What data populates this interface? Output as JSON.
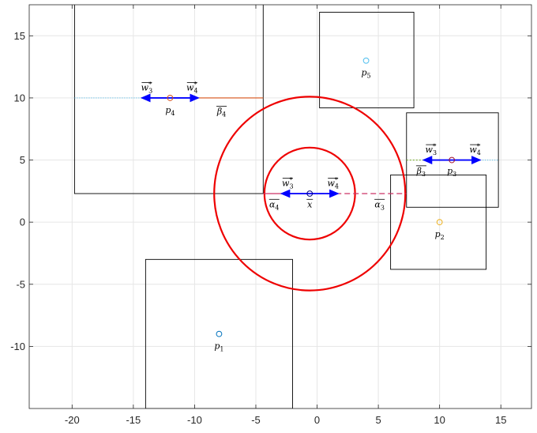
{
  "chart_data": {
    "type": "scatter",
    "title": "",
    "xlabel": "",
    "ylabel": "",
    "xlim": [
      -23.5,
      17.5
    ],
    "ylim": [
      -15,
      17.5
    ],
    "grid": true,
    "xticks": [
      -20,
      -15,
      -10,
      -5,
      0,
      5,
      10,
      15
    ],
    "yticks": [
      -10,
      -5,
      0,
      5,
      10,
      15
    ],
    "xtick_labels": [
      "-20",
      "-15",
      "-10",
      "-5",
      "0",
      "5",
      "10",
      "15"
    ],
    "ytick_labels": [
      "-10",
      "-5",
      "0",
      "5",
      "10",
      "15"
    ],
    "points": [
      {
        "label": "p",
        "sub": "1",
        "x": -8,
        "y": -9,
        "color": "#0072bd"
      },
      {
        "label": "p",
        "sub": "2",
        "x": 10,
        "y": 0,
        "color": "#edb120"
      },
      {
        "label": "p",
        "sub": "3",
        "x": 11,
        "y": 5,
        "color": "#a2142f"
      },
      {
        "label": "p",
        "sub": "4",
        "x": -12,
        "y": 10,
        "color": "#d95319"
      },
      {
        "label": "p",
        "sub": "5",
        "x": 4,
        "y": 13,
        "color": "#4dbeee"
      },
      {
        "label": "x̄",
        "sub": "",
        "x": -0.6,
        "y": 2.3,
        "color": "#000080"
      }
    ],
    "boxes": [
      {
        "x0": -14,
        "x1": -2,
        "y0": -15,
        "y1": -3
      },
      {
        "x0": 6,
        "x1": 13.8,
        "y0": -3.8,
        "y1": 3.8
      },
      {
        "x0": 7.3,
        "x1": 14.8,
        "y0": 1.2,
        "y1": 8.8
      },
      {
        "x0": -19.8,
        "x1": -4.4,
        "y0": 2.3,
        "y1": 17.7
      },
      {
        "x0": 0.2,
        "x1": 7.9,
        "y0": 9.2,
        "y1": 16.9
      }
    ],
    "circles": [
      {
        "cx": -0.6,
        "cy": 2.3,
        "r": 3.7,
        "color": "#ee0000"
      },
      {
        "cx": -0.6,
        "cy": 2.3,
        "r": 7.8,
        "color": "#ee0000"
      }
    ],
    "segments": [
      {
        "x0": -19.8,
        "y0": 10,
        "x1": -12,
        "y1": 10,
        "color": "#4dbeee",
        "dash": "1,2"
      },
      {
        "x0": -12,
        "y0": 10,
        "x1": -4.4,
        "y1": 10,
        "color": "#d95319",
        "dash": ""
      },
      {
        "x0": 11,
        "y0": 5,
        "x1": 14.8,
        "y1": 5,
        "color": "#4dbeee",
        "dash": "1,2"
      },
      {
        "x0": 7.3,
        "y0": 5,
        "x1": 9.5,
        "y1": 5,
        "color": "#77ac30",
        "dash": "2,2"
      },
      {
        "x0": -4.4,
        "y0": 2.3,
        "x1": -0.6,
        "y1": 2.3,
        "color": "#cc3366",
        "dash": ""
      },
      {
        "x0": -0.6,
        "y0": 2.3,
        "x1": 7.3,
        "y1": 2.3,
        "color": "#cc3366",
        "dash": "7,4"
      }
    ],
    "arrows": [
      {
        "x0": -12,
        "y0": 10,
        "x1": -14.3,
        "y1": 10
      },
      {
        "x0": -12,
        "y0": 10,
        "x1": -9.7,
        "y1": 10
      },
      {
        "x0": -0.6,
        "y0": 2.3,
        "x1": -2.9,
        "y1": 2.3
      },
      {
        "x0": -0.6,
        "y0": 2.3,
        "x1": 1.7,
        "y1": 2.3
      },
      {
        "x0": 11,
        "y0": 5,
        "x1": 8.7,
        "y1": 5
      },
      {
        "x0": 11,
        "y0": 5,
        "x1": 13.3,
        "y1": 5
      }
    ],
    "annotations": [
      {
        "base": "w",
        "sub": "3",
        "sup": "*",
        "bar": true,
        "x": -13.9,
        "y": 10.6
      },
      {
        "base": "w",
        "sub": "4",
        "sup": "*",
        "bar": true,
        "x": -10.2,
        "y": 10.6
      },
      {
        "base": "β",
        "sub": "4",
        "sup": "",
        "bar": true,
        "x": -7.8,
        "y": 8.7
      },
      {
        "base": "w",
        "sub": "3",
        "sup": "*",
        "bar": true,
        "x": -2.4,
        "y": 2.9
      },
      {
        "base": "w",
        "sub": "4",
        "sup": "*",
        "bar": true,
        "x": 1.3,
        "y": 2.9
      },
      {
        "base": "α",
        "sub": "4",
        "sup": "",
        "bar": true,
        "x": -3.5,
        "y": 1.2
      },
      {
        "base": "x",
        "sub": "",
        "sup": "",
        "bar": true,
        "x": -0.6,
        "y": 1.2
      },
      {
        "base": "α",
        "sub": "3",
        "sup": "",
        "bar": true,
        "x": 5.1,
        "y": 1.2
      },
      {
        "base": "w",
        "sub": "3",
        "sup": "*",
        "bar": true,
        "x": 9.3,
        "y": 5.6
      },
      {
        "base": "w",
        "sub": "4",
        "sup": "*",
        "bar": true,
        "x": 12.9,
        "y": 5.6
      },
      {
        "base": "β",
        "sub": "3",
        "sup": "",
        "bar": true,
        "x": 8.5,
        "y": 3.9
      },
      {
        "base": "p",
        "sub": "3",
        "sup": "",
        "bar": false,
        "x": 11.0,
        "y": 3.9
      },
      {
        "base": "p",
        "sub": "4",
        "sup": "",
        "bar": false,
        "x": -12.0,
        "y": 8.8
      },
      {
        "base": "p",
        "sub": "5",
        "sup": "",
        "bar": false,
        "x": 4.0,
        "y": 11.8
      },
      {
        "base": "p",
        "sub": "2",
        "sup": "",
        "bar": false,
        "x": 10.0,
        "y": -1.2
      },
      {
        "base": "p",
        "sub": "1",
        "sup": "",
        "bar": false,
        "x": -8.0,
        "y": -10.2
      }
    ]
  }
}
